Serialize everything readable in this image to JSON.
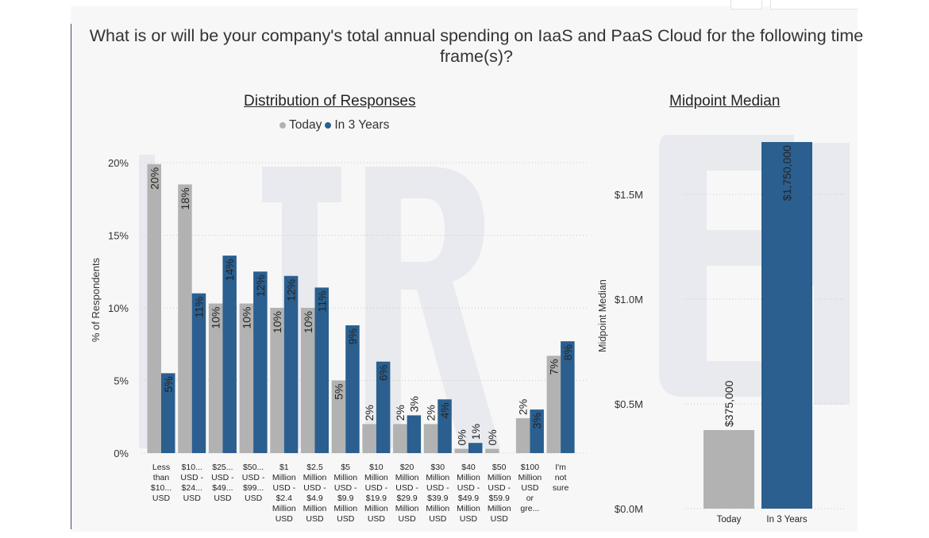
{
  "title": "What is or will be your company's total annual spending on IaaS and PaaS Cloud for the following time frame(s)?",
  "colors": {
    "today": "#b2b2b2",
    "in3years": "#2a5f8f",
    "grid": "#c8c8c8",
    "text": "#333333"
  },
  "chart_data": [
    {
      "type": "bar",
      "title": "Distribution of Responses",
      "ylabel": "% of Respondents",
      "ylim": [
        0,
        20
      ],
      "yticks": [
        "0%",
        "5%",
        "10%",
        "15%",
        "20%"
      ],
      "legend_position": "top",
      "categories": [
        [
          "Less",
          "than",
          "$10...",
          "USD"
        ],
        [
          "$10...",
          "USD -",
          "$24...",
          "USD"
        ],
        [
          "$25...",
          "USD -",
          "$49...",
          "USD"
        ],
        [
          "$50...",
          "USD -",
          "$99...",
          "USD"
        ],
        [
          "$1",
          "Million",
          "USD -",
          "$2.4",
          "Million",
          "USD"
        ],
        [
          "$2.5",
          "Million",
          "USD -",
          "$4.9",
          "Million",
          "USD"
        ],
        [
          "$5",
          "Million",
          "USD -",
          "$9.9",
          "Million",
          "USD"
        ],
        [
          "$10",
          "Million",
          "USD -",
          "$19.9",
          "Million",
          "USD"
        ],
        [
          "$20",
          "Million",
          "USD -",
          "$29.9",
          "Million",
          "USD"
        ],
        [
          "$30",
          "Million",
          "USD -",
          "$39.9",
          "Million",
          "USD"
        ],
        [
          "$40",
          "Million",
          "USD -",
          "$49.9",
          "Million",
          "USD"
        ],
        [
          "$50",
          "Million",
          "USD -",
          "$59.9",
          "Million",
          "USD"
        ],
        [
          "$100",
          "Million",
          "USD",
          "or",
          "gre..."
        ],
        [
          "I'm",
          "not",
          "sure"
        ]
      ],
      "series": [
        {
          "name": "Today",
          "values": [
            19.9,
            18.5,
            10.3,
            10.3,
            10.0,
            10.0,
            5.0,
            2.0,
            2.0,
            2.0,
            0.3,
            0.3,
            2.4,
            6.7
          ],
          "labels": [
            "20%",
            "18%",
            "10%",
            "10%",
            "10%",
            "10%",
            "5%",
            "2%",
            "2%",
            "2%",
            "0%",
            "0%",
            "2%",
            "7%"
          ]
        },
        {
          "name": "In 3 Years",
          "values": [
            5.5,
            11.0,
            13.6,
            12.5,
            12.2,
            11.4,
            8.8,
            6.3,
            2.6,
            3.7,
            0.7,
            null,
            3.0,
            7.7
          ],
          "labels": [
            "5%",
            "11%",
            "14%",
            "12%",
            "12%",
            "11%",
            "9%",
            "6%",
            "3%",
            "4%",
            "1%",
            "",
            "3%",
            "8%"
          ]
        }
      ]
    },
    {
      "type": "bar",
      "title": "Midpoint Median",
      "ylabel": "Midpoint Median",
      "ylim": [
        0,
        1750000
      ],
      "yticks": [
        "$0.0M",
        "$0.5M",
        "$1.0M",
        "$1.5M"
      ],
      "categories": [
        "Today",
        "In 3 Years"
      ],
      "values": [
        375000,
        1750000
      ],
      "labels": [
        "$375,000",
        "$1,750,000"
      ]
    }
  ]
}
